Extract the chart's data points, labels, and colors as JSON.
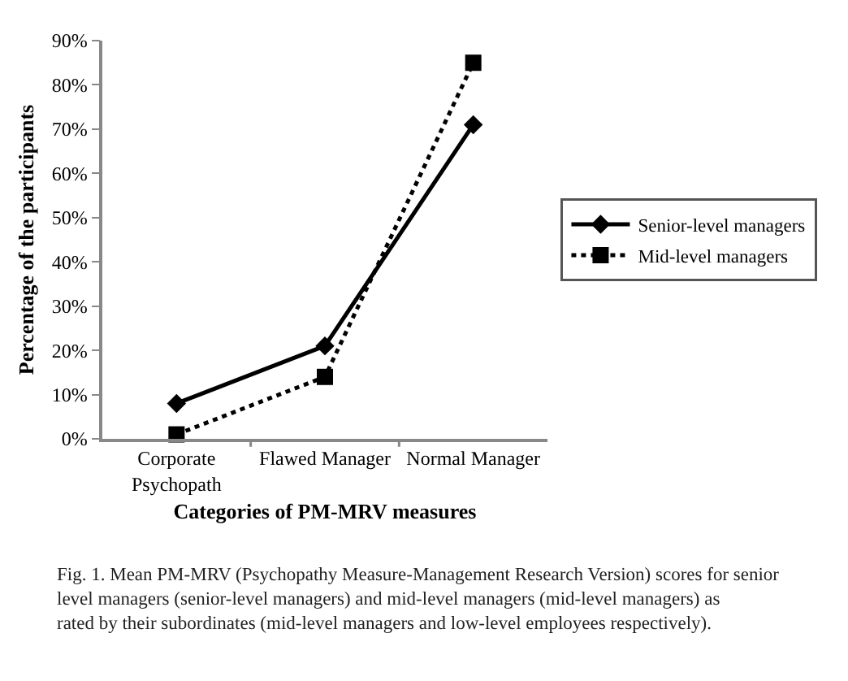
{
  "chart_data": {
    "type": "line",
    "xlabel": "Categories of PM-MRV measures",
    "ylabel": "Percentage of the participants",
    "categories": [
      "Corporate Psychopath",
      "Flawed Manager",
      "Normal Manager"
    ],
    "series": [
      {
        "name": "Senior-level managers",
        "color": "#000000",
        "values": [
          8,
          21,
          71
        ],
        "marker": "diamond",
        "line_style": "solid"
      },
      {
        "name": "Mid-level managers",
        "color": "#000000",
        "values": [
          1,
          14,
          85
        ],
        "marker": "square",
        "line_style": "dotted"
      }
    ],
    "ylim": [
      0,
      90
    ],
    "yticks": [
      {
        "value": 0,
        "label": "0%"
      },
      {
        "value": 10,
        "label": "10%"
      },
      {
        "value": 20,
        "label": "20%"
      },
      {
        "value": 30,
        "label": "30%"
      },
      {
        "value": 40,
        "label": "40%"
      },
      {
        "value": 50,
        "label": "50%"
      },
      {
        "value": 60,
        "label": "60%"
      },
      {
        "value": 70,
        "label": "70%"
      },
      {
        "value": 80,
        "label": "80%"
      },
      {
        "value": 90,
        "label": "90%"
      }
    ],
    "legend": "right",
    "annotations": [
      "Fig. 1. Mean PM-MRV (Psychopathy Measure-Management Research Version) scores for senior level managers (senior-level managers) and mid-level managers (mid-level managers) as rated by their subordinates (mid-level managers and low-level employees respectively)."
    ]
  }
}
